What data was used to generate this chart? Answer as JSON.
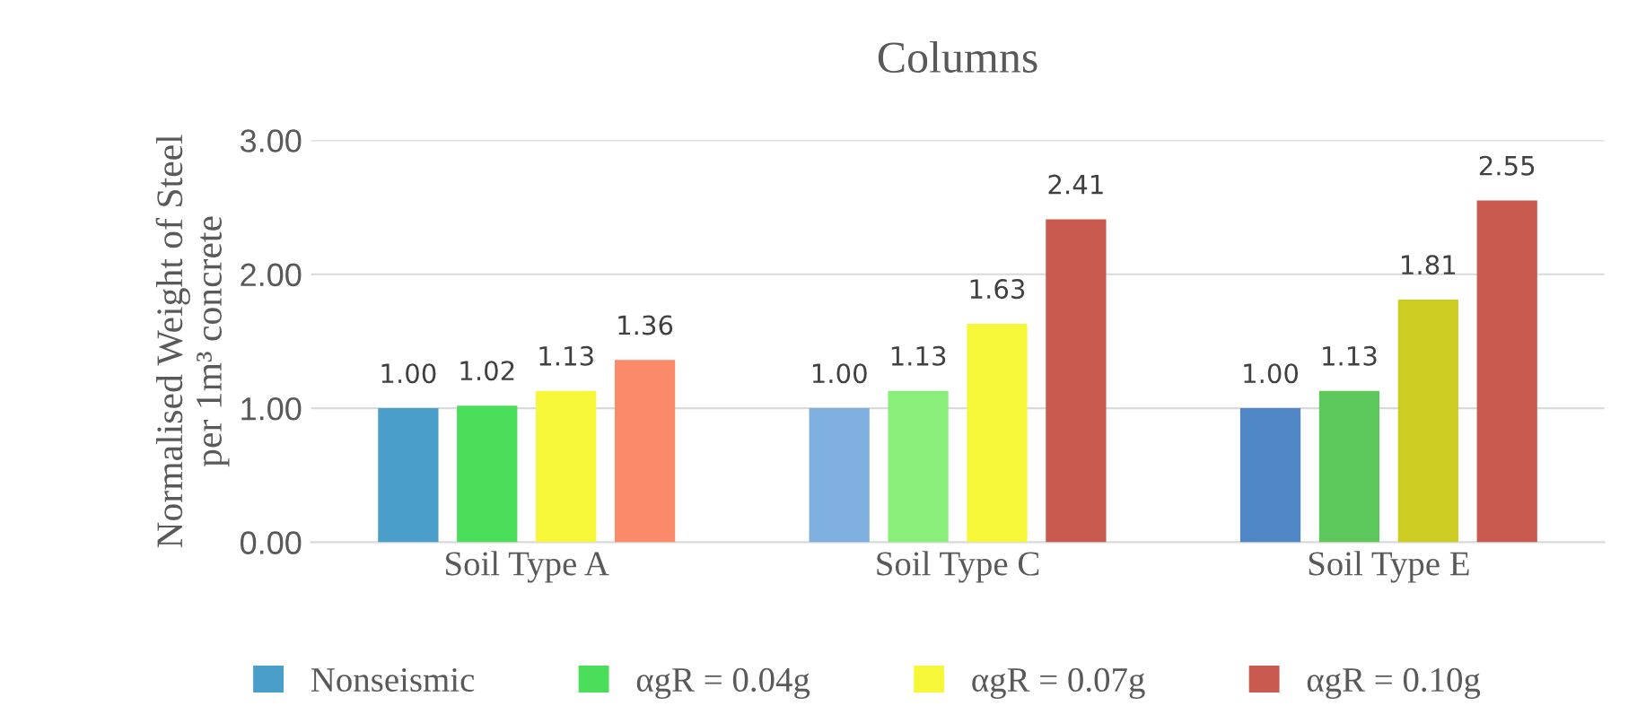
{
  "chart_data": {
    "type": "bar",
    "title": "Columns",
    "ylabel": "Normalised Weight of Steel\nper 1m³ concrete",
    "categories": [
      "Soil Type A",
      "Soil Type C",
      "Soil Type E"
    ],
    "series": [
      {
        "name": "Nonseismic",
        "color": "#4a9fca",
        "colors": [
          "#4a9fca",
          "#80b0e0",
          "#4f86c6"
        ],
        "values": [
          1.0,
          1.0,
          1.0
        ],
        "value_labels": [
          "1.00",
          "1.00",
          "1.00"
        ]
      },
      {
        "name": "αgR = 0.04g",
        "color": "#4ade5a",
        "colors": [
          "#4ade5a",
          "#8aef7a",
          "#5cc85c"
        ],
        "values": [
          1.02,
          1.13,
          1.13
        ],
        "value_labels": [
          "1.02",
          "1.13",
          "1.13"
        ]
      },
      {
        "name": "αgR = 0.07g",
        "color": "#f7f73a",
        "colors": [
          "#f7f73a",
          "#f7f73a",
          "#cccc22"
        ],
        "values": [
          1.13,
          1.63,
          1.81
        ],
        "value_labels": [
          "1.13",
          "1.63",
          "1.81"
        ]
      },
      {
        "name": "αgR = 0.10g",
        "color": "#c85a50",
        "colors": [
          "#fa8a6a",
          "#c85a50",
          "#c85a50"
        ],
        "values": [
          1.36,
          2.41,
          2.55
        ],
        "value_labels": [
          "1.36",
          "2.41",
          "2.55"
        ]
      }
    ],
    "ylim": [
      0,
      3.0
    ],
    "yticks": [
      {
        "value": 0,
        "label": "0.00"
      },
      {
        "value": 1,
        "label": "1.00"
      },
      {
        "value": 2,
        "label": "2.00"
      },
      {
        "value": 3,
        "label": "3.00"
      }
    ],
    "grid": "y",
    "legend": "bottom"
  }
}
